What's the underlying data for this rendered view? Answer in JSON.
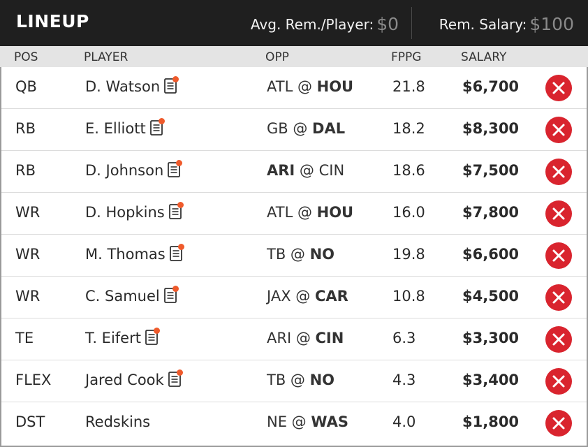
{
  "header": {
    "title": "LINEUP",
    "avg_label": "Avg. Rem./Player:",
    "avg_value": "$0",
    "rem_label": "Rem. Salary:",
    "rem_value": "$100"
  },
  "columns": {
    "pos": "POS",
    "player": "PLAYER",
    "opp": "OPP",
    "fppg": "FPPG",
    "salary": "SALARY"
  },
  "rows": [
    {
      "pos": "QB",
      "player": "D. Watson",
      "has_news": true,
      "away": "ATL",
      "at": " @ ",
      "home": "HOU",
      "bold": "home",
      "fppg": "21.8",
      "salary": "$6,700"
    },
    {
      "pos": "RB",
      "player": "E. Elliott",
      "has_news": true,
      "away": "GB",
      "at": " @ ",
      "home": "DAL",
      "bold": "home",
      "fppg": "18.2",
      "salary": "$8,300"
    },
    {
      "pos": "RB",
      "player": "D. Johnson",
      "has_news": true,
      "away": "ARI",
      "at": " @ ",
      "home": "CIN",
      "bold": "away",
      "fppg": "18.6",
      "salary": "$7,500"
    },
    {
      "pos": "WR",
      "player": "D. Hopkins",
      "has_news": true,
      "away": "ATL",
      "at": " @ ",
      "home": "HOU",
      "bold": "home",
      "fppg": "16.0",
      "salary": "$7,800"
    },
    {
      "pos": "WR",
      "player": "M. Thomas",
      "has_news": true,
      "away": "TB",
      "at": " @ ",
      "home": "NO",
      "bold": "home",
      "fppg": "19.8",
      "salary": "$6,600"
    },
    {
      "pos": "WR",
      "player": "C. Samuel",
      "has_news": true,
      "away": "JAX",
      "at": " @ ",
      "home": "CAR",
      "bold": "home",
      "fppg": "10.8",
      "salary": "$4,500"
    },
    {
      "pos": "TE",
      "player": "T. Eifert",
      "has_news": true,
      "away": "ARI",
      "at": " @ ",
      "home": "CIN",
      "bold": "home",
      "fppg": "6.3",
      "salary": "$3,300"
    },
    {
      "pos": "FLEX",
      "player": "Jared Cook",
      "has_news": true,
      "away": "TB",
      "at": " @ ",
      "home": "NO",
      "bold": "home",
      "fppg": "4.3",
      "salary": "$3,400"
    },
    {
      "pos": "DST",
      "player": "Redskins",
      "has_news": false,
      "away": "NE",
      "at": " @ ",
      "home": "WAS",
      "bold": "home",
      "fppg": "4.0",
      "salary": "$1,800"
    }
  ],
  "icons": {
    "news": "player-news-icon",
    "remove": "remove-player-icon"
  },
  "colors": {
    "header_bg": "#1f1f1f",
    "colhead_bg": "#e4e4e4",
    "remove_red": "#d9242e",
    "news_dot": "#ef5a2b"
  }
}
